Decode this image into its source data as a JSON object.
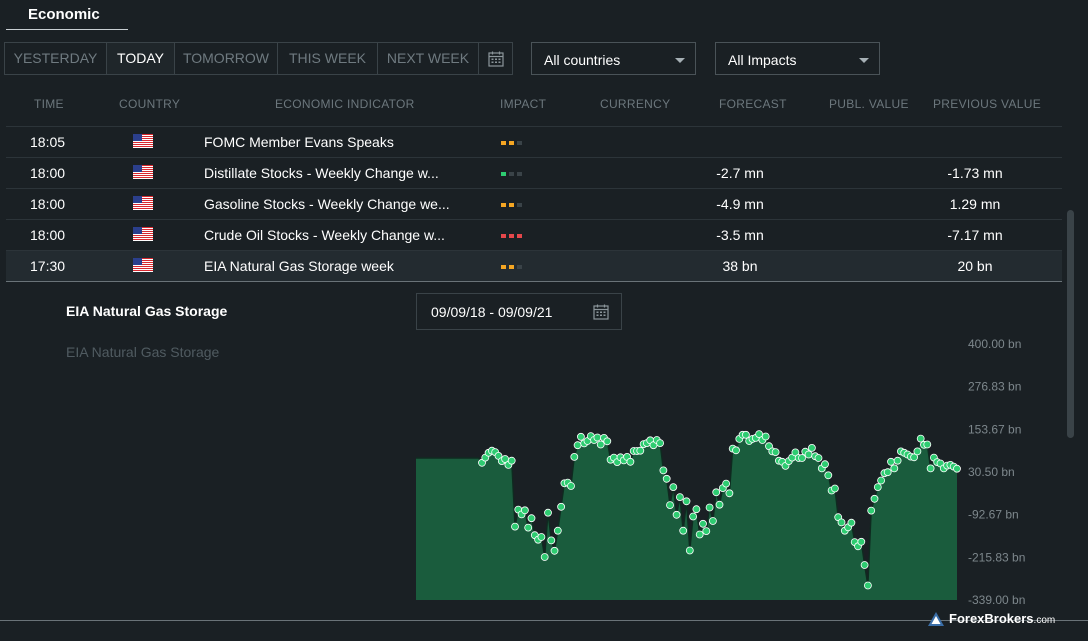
{
  "header": {
    "title": "Economic"
  },
  "period_tabs": [
    {
      "label": "YESTERDAY",
      "active": false
    },
    {
      "label": "TODAY",
      "active": true
    },
    {
      "label": "TOMORROW",
      "active": false
    },
    {
      "label": "THIS WEEK",
      "active": false
    },
    {
      "label": "NEXT WEEK",
      "active": false
    }
  ],
  "filters": {
    "countries": "All countries",
    "impacts": "All Impacts"
  },
  "columns": {
    "time": "TIME",
    "country": "COUNTRY",
    "indicator": "ECONOMIC INDICATOR",
    "impact": "IMPACT",
    "currency": "CURRENCY",
    "forecast": "FORECAST",
    "publ_value": "PUBL. VALUE",
    "previous": "PREVIOUS VALUE"
  },
  "rows": [
    {
      "time": "18:05",
      "country_icon": "us-flag-icon",
      "indicator": "FOMC Member Evans Speaks",
      "impact": [
        "orange",
        "orange",
        "gray"
      ],
      "currency": "",
      "forecast": "",
      "publ_value": "",
      "previous": ""
    },
    {
      "time": "18:00",
      "country_icon": "us-flag-icon",
      "indicator": "Distillate Stocks - Weekly Change w...",
      "impact": [
        "green",
        "gray",
        "gray"
      ],
      "currency": "",
      "forecast": "-2.7 mn",
      "publ_value": "",
      "previous": "-1.73 mn"
    },
    {
      "time": "18:00",
      "country_icon": "us-flag-icon",
      "indicator": "Gasoline Stocks - Weekly Change we...",
      "impact": [
        "orange",
        "orange",
        "gray"
      ],
      "currency": "",
      "forecast": "-4.9 mn",
      "publ_value": "",
      "previous": "1.29 mn"
    },
    {
      "time": "18:00",
      "country_icon": "us-flag-icon",
      "indicator": "Crude Oil Stocks - Weekly Change w...",
      "impact": [
        "red",
        "red",
        "red"
      ],
      "currency": "",
      "forecast": "-3.5 mn",
      "publ_value": "",
      "previous": "-7.17 mn"
    },
    {
      "time": "17:30",
      "country_icon": "us-flag-icon",
      "indicator": "EIA Natural Gas Storage week",
      "impact": [
        "orange",
        "orange",
        "gray"
      ],
      "currency": "",
      "forecast": "38 bn",
      "publ_value": "",
      "previous": "20 bn",
      "selected": true
    }
  ],
  "detail": {
    "title": "EIA Natural Gas Storage",
    "subtitle": "EIA Natural Gas Storage",
    "date_range": "09/09/18 - 09/09/21"
  },
  "chart_data": {
    "type": "area",
    "title": "",
    "xlabel": "",
    "ylabel": "",
    "ylim": [
      -339,
      400
    ],
    "y_ticks": [
      "400.00 bn",
      "276.83 bn",
      "153.67 bn",
      "30.50 bn",
      "-92.67 bn",
      "-215.83 bn",
      "-339.00 bn"
    ],
    "y_tick_values": [
      400,
      276.83,
      153.67,
      30.5,
      -92.67,
      -215.83,
      -339
    ],
    "grid": false,
    "series": [
      {
        "values": [
          71,
          71,
          71,
          71,
          71,
          71,
          71,
          71,
          71,
          71,
          71,
          71,
          71,
          71,
          71,
          71,
          71,
          71,
          71,
          71,
          57,
          72,
          86,
          92,
          88,
          77,
          62,
          68,
          51,
          63,
          -127,
          -78,
          -92,
          -80,
          -130,
          -103,
          -152,
          -165,
          -157,
          -215,
          -87,
          -167,
          -197,
          -139,
          -70,
          -2,
          0,
          -10,
          74,
          108,
          132,
          113,
          120,
          134,
          123,
          130,
          110,
          129,
          119,
          66,
          72,
          59,
          73,
          64,
          74,
          60,
          91,
          91,
          92,
          111,
          114,
          122,
          108,
          123,
          114,
          35,
          11,
          -65,
          -13,
          -93,
          -42,
          -139,
          -54,
          -196,
          -98,
          -77,
          -150,
          -119,
          -140,
          -72,
          -111,
          -28,
          -64,
          -16,
          -3,
          -31,
          98,
          93,
          126,
          138,
          138,
          120,
          126,
          129,
          140,
          123,
          133,
          105,
          90,
          88,
          63,
          60,
          48,
          62,
          72,
          87,
          71,
          71,
          89,
          81,
          100,
          76,
          71,
          41,
          53,
          21,
          -23,
          -17,
          -100,
          -115,
          -139,
          -129,
          -116,
          -172,
          -184,
          -171,
          -238,
          -297,
          -81,
          -47,
          -13,
          6,
          27,
          30,
          60,
          41,
          63,
          90,
          86,
          81,
          75,
          73,
          90,
          127,
          109,
          110,
          41,
          72,
          59,
          55,
          41,
          49,
          51,
          46,
          40
        ],
        "color": "#2ecc71"
      }
    ]
  },
  "watermark": {
    "brand": "ForexBrokers",
    "suffix": ".com"
  },
  "colors": {
    "orange": "#f5a623",
    "green": "#2ecc71",
    "red": "#e5474b",
    "gray": "#3a4348",
    "area_fill": "#1a5c3d"
  }
}
